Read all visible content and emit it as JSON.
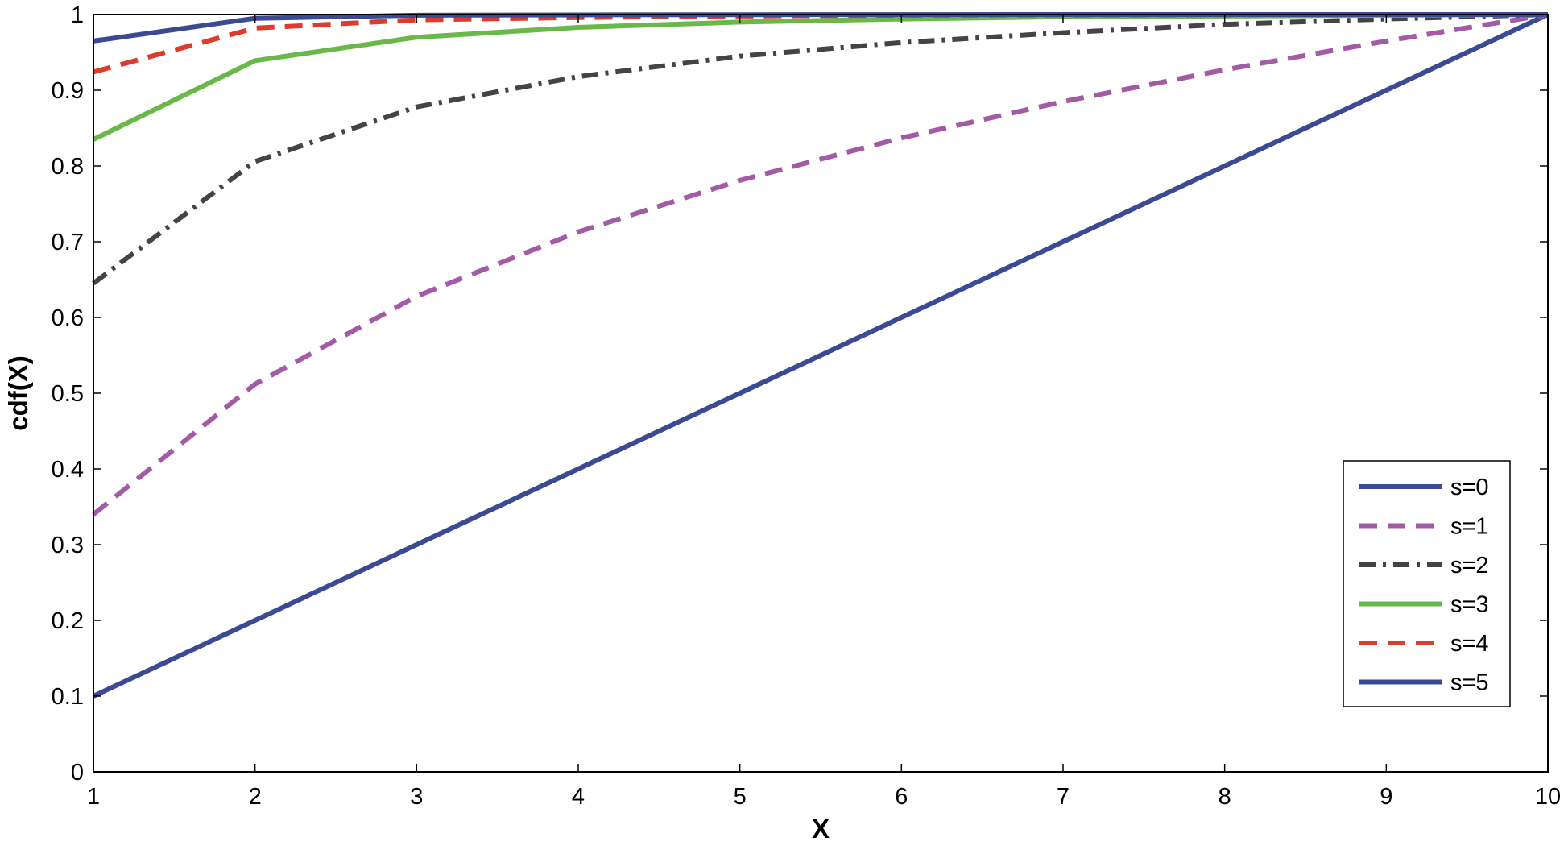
{
  "chart_data": {
    "type": "line",
    "title": "",
    "xlabel": "X",
    "ylabel": "cdf(X)",
    "xlim": [
      1,
      10
    ],
    "ylim": [
      0,
      1
    ],
    "x": [
      1,
      2,
      3,
      4,
      5,
      6,
      7,
      8,
      9,
      10
    ],
    "xticks": [
      "1",
      "2",
      "3",
      "4",
      "5",
      "6",
      "7",
      "8",
      "9",
      "10"
    ],
    "yticks": [
      "0",
      "0.1",
      "0.2",
      "0.3",
      "0.4",
      "0.5",
      "0.6",
      "0.7",
      "0.8",
      "0.9",
      "1"
    ],
    "grid": false,
    "legend_position": "bottom-right",
    "series": [
      {
        "name": "s=0",
        "style": "solid",
        "color": "#3b4a93",
        "values": [
          0.1,
          0.2,
          0.3,
          0.4,
          0.5,
          0.6,
          0.7,
          0.8,
          0.9,
          1.0
        ]
      },
      {
        "name": "s=1",
        "style": "dashed",
        "color": "#a35ba6",
        "values": [
          0.34,
          0.512,
          0.628,
          0.713,
          0.781,
          0.837,
          0.885,
          0.927,
          0.965,
          1.0
        ]
      },
      {
        "name": "s=2",
        "style": "dashdot",
        "color": "#444444",
        "values": [
          0.645,
          0.806,
          0.878,
          0.918,
          0.945,
          0.963,
          0.976,
          0.987,
          0.994,
          1.0
        ]
      },
      {
        "name": "s=3",
        "style": "solid",
        "color": "#6bb84a",
        "values": [
          0.835,
          0.939,
          0.97,
          0.983,
          0.99,
          0.994,
          0.997,
          0.998,
          0.999,
          1.0
        ]
      },
      {
        "name": "s=4",
        "style": "dashed",
        "color": "#dd3b2c",
        "values": [
          0.924,
          0.982,
          0.993,
          0.996,
          0.998,
          0.999,
          0.9995,
          0.9998,
          0.9999,
          1.0
        ]
      },
      {
        "name": "s=5",
        "style": "solid",
        "color": "#3b4a93",
        "values": [
          0.965,
          0.995,
          0.999,
          0.9995,
          0.9998,
          0.9999,
          1.0,
          1.0,
          1.0,
          1.0
        ]
      }
    ]
  }
}
